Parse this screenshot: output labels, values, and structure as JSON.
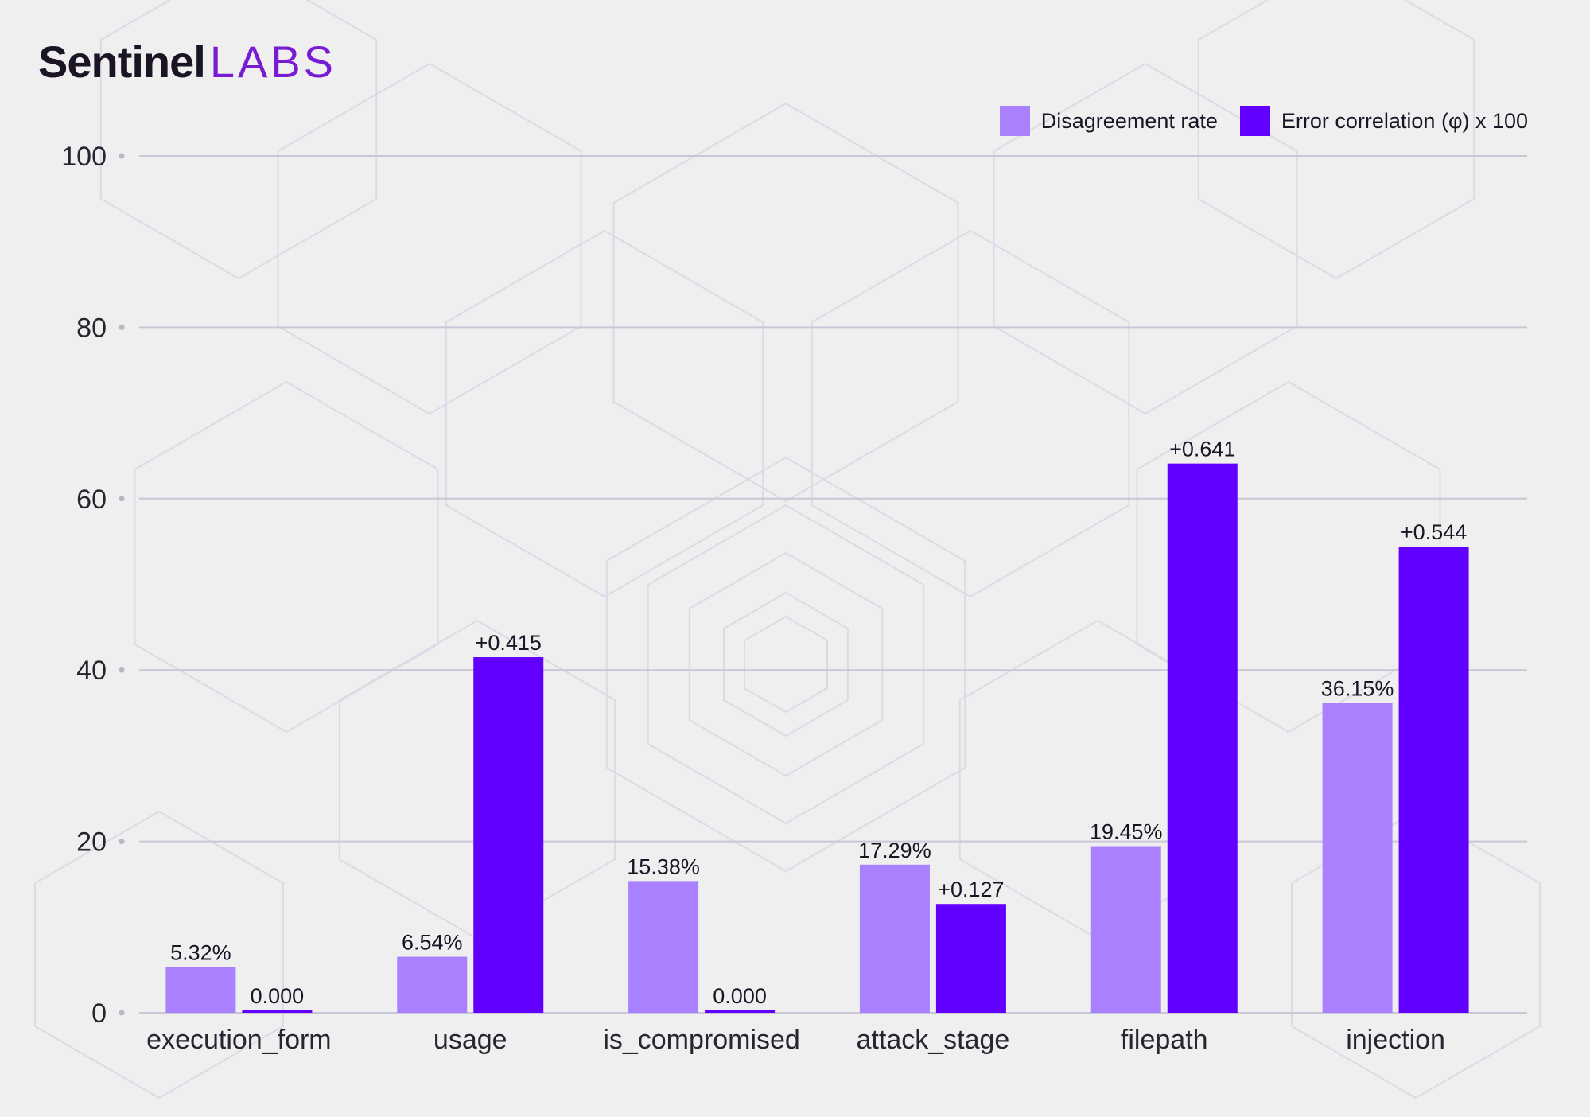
{
  "logo": {
    "part1": "Sentinel",
    "part2": "LABS"
  },
  "colors": {
    "disagreement": "#a981fe",
    "correlation": "#6200ff",
    "grid": "#c9c6d6",
    "background": "#efefef"
  },
  "chart_data": {
    "type": "bar",
    "title": "",
    "xlabel": "",
    "ylabel": "",
    "ylim": [
      0,
      100
    ],
    "yticks": [
      0,
      20,
      40,
      60,
      80,
      100
    ],
    "legend_position": "top-right",
    "categories": [
      "execution_form",
      "usage",
      "is_compromised",
      "attack_stage",
      "filepath",
      "injection"
    ],
    "series": [
      {
        "name": "Disagreement rate",
        "values": [
          5.32,
          6.54,
          15.38,
          17.29,
          19.45,
          36.15
        ],
        "labels": [
          "5.32%",
          "6.54%",
          "15.38%",
          "17.29%",
          "19.45%",
          "36.15%"
        ]
      },
      {
        "name": "Error correlation (φ) x 100",
        "values": [
          0.0,
          41.5,
          0.0,
          12.7,
          64.1,
          54.4
        ],
        "labels": [
          "0.000",
          "+0.415",
          "0.000",
          "+0.127",
          "+0.641",
          "+0.544"
        ]
      }
    ]
  }
}
